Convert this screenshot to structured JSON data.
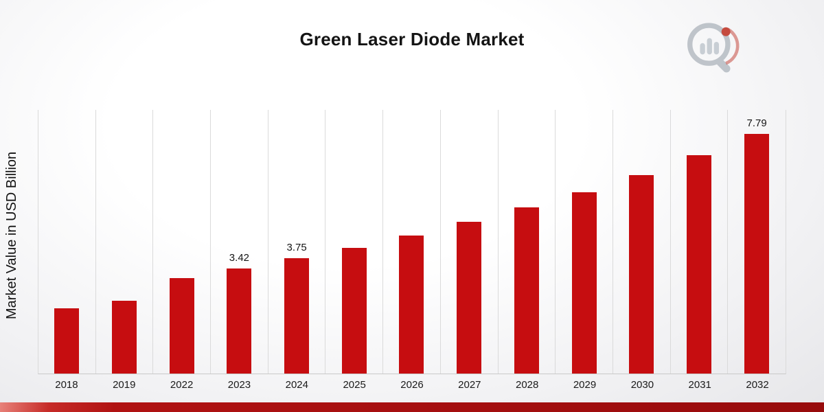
{
  "title": "Green Laser Diode Market",
  "y_axis_label": "Market Value in USD Billion",
  "logo_name": "market-research-future-logo",
  "colors": {
    "bar": "#c60d10",
    "grid": "#dadada",
    "ribbon": "#a30e0f"
  },
  "chart_data": {
    "type": "bar",
    "title": "Green Laser Diode Market",
    "xlabel": "",
    "ylabel": "Market Value in USD Billion",
    "categories": [
      "2018",
      "2019",
      "2022",
      "2023",
      "2024",
      "2025",
      "2026",
      "2027",
      "2028",
      "2029",
      "2030",
      "2031",
      "2032"
    ],
    "values": [
      2.12,
      2.38,
      3.1,
      3.42,
      3.75,
      4.1,
      4.5,
      4.93,
      5.4,
      5.9,
      6.45,
      7.1,
      7.79
    ],
    "data_labels": [
      "",
      "",
      "",
      "3.42",
      "3.75",
      "",
      "",
      "",
      "",
      "",
      "",
      "",
      "7.79"
    ],
    "ylim": [
      0,
      8.6
    ],
    "bar_color": "#c60d10",
    "grid": "vertical",
    "legend": "none"
  }
}
